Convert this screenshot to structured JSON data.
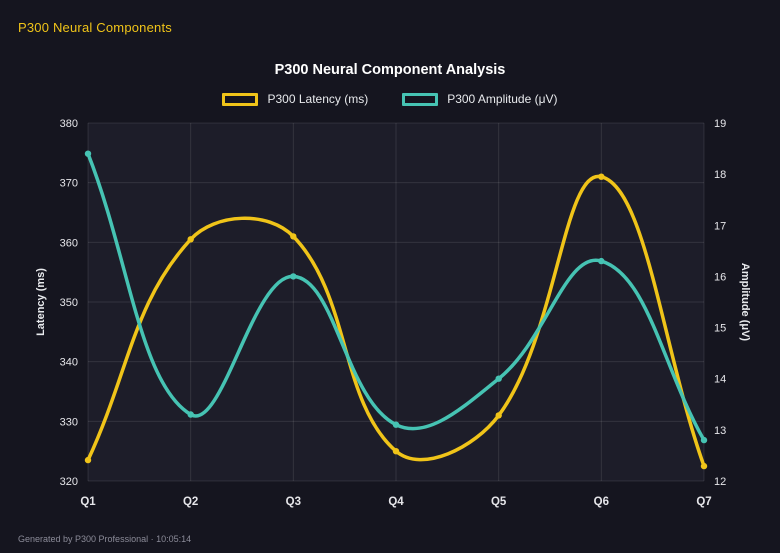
{
  "header": {
    "title": "P300 Neural Components"
  },
  "footer": {
    "text": "Generated by P300 Professional · 10:05:14"
  },
  "chart_data": {
    "type": "line",
    "title": "P300 Neural Component Analysis",
    "categories": [
      "Q1",
      "Q2",
      "Q3",
      "Q4",
      "Q5",
      "Q6",
      "Q7"
    ],
    "series": [
      {
        "name": "P300 Latency (ms)",
        "axis": "left",
        "color": "#f0c419",
        "values": [
          323.5,
          360.5,
          361,
          325,
          331,
          371,
          322.5
        ]
      },
      {
        "name": "P300 Amplitude (μV)",
        "axis": "right",
        "color": "#46c3b3",
        "values": [
          18.4,
          13.3,
          16.0,
          13.1,
          14.0,
          16.3,
          12.8
        ]
      }
    ],
    "left_axis": {
      "label": "Latency (ms)",
      "min": 320,
      "max": 380,
      "ticks": [
        320,
        330,
        340,
        350,
        360,
        370,
        380
      ]
    },
    "right_axis": {
      "label": "Amplitude (μV)",
      "min": 12,
      "max": 19,
      "ticks": [
        12,
        13,
        14,
        15,
        16,
        17,
        18,
        19
      ]
    },
    "legend_position": "top",
    "grid": true,
    "curve_tension": 0.4,
    "colors": {
      "background": "#15151f",
      "plot_background": "#1d1d29",
      "grid": "rgba(255,255,255,0.10)",
      "tick_text": "#e6e6ea",
      "axis_title_text": "#e8eaed",
      "title_text": "#ffffff"
    }
  }
}
